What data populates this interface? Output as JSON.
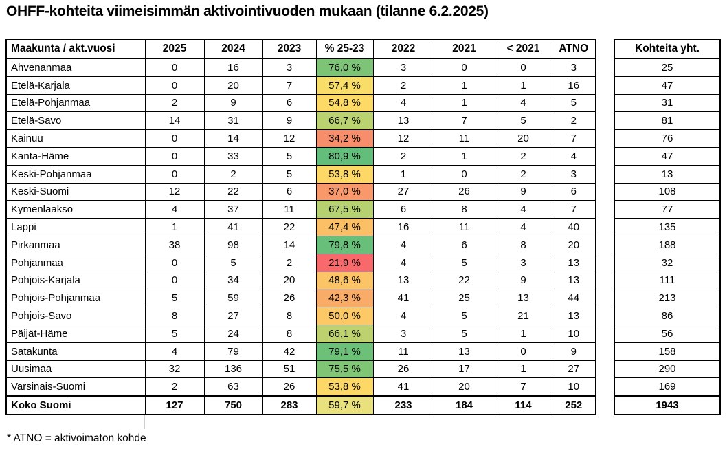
{
  "page": {
    "title": "OHFF-kohteita viimeisimmän aktivointivuoden mukaan (tilanne 6.2.2025)",
    "footnote": "* ATNO = aktivoimaton kohde"
  },
  "chart_data": {
    "type": "table",
    "title": "OHFF-kohteita viimeisimmän aktivointivuoden mukaan (tilanne 6.2.2025)",
    "columns": [
      "Maakunta / akt.vuosi",
      "2025",
      "2024",
      "2023",
      "% 25-23",
      "2022",
      "2021",
      "< 2021",
      "ATNO"
    ],
    "totals_column_header": "Kohteita yht.",
    "rows": [
      {
        "maakunta": "Ahvenanmaa",
        "v2025": "0",
        "v2024": "16",
        "v2023": "3",
        "pct": "76,0 %",
        "pct_color": "#7DC477",
        "v2022": "3",
        "v2021": "0",
        "pre2021": "0",
        "atno": "3",
        "kohteita_yht": "25"
      },
      {
        "maakunta": "Etelä-Karjala",
        "v2025": "0",
        "v2024": "20",
        "v2023": "7",
        "pct": "57,4 %",
        "pct_color": "#F8DE68",
        "v2022": "2",
        "v2021": "1",
        "pre2021": "1",
        "atno": "16",
        "kohteita_yht": "47"
      },
      {
        "maakunta": "Etelä-Pohjanmaa",
        "v2025": "2",
        "v2024": "9",
        "v2023": "6",
        "pct": "54,8 %",
        "pct_color": "#FDDA66",
        "v2022": "4",
        "v2021": "1",
        "pre2021": "4",
        "atno": "5",
        "kohteita_yht": "31"
      },
      {
        "maakunta": "Etelä-Savo",
        "v2025": "14",
        "v2024": "31",
        "v2023": "9",
        "pct": "66,7 %",
        "pct_color": "#BAD26F",
        "v2022": "13",
        "v2021": "7",
        "pre2021": "5",
        "atno": "2",
        "kohteita_yht": "81"
      },
      {
        "maakunta": "Kainuu",
        "v2025": "0",
        "v2024": "14",
        "v2023": "12",
        "pct": "34,2 %",
        "pct_color": "#F78E6B",
        "v2022": "12",
        "v2021": "11",
        "pre2021": "20",
        "atno": "7",
        "kohteita_yht": "76"
      },
      {
        "maakunta": "Kanta-Häme",
        "v2025": "0",
        "v2024": "33",
        "v2023": "5",
        "pct": "80,9 %",
        "pct_color": "#63BE7B",
        "v2022": "2",
        "v2021": "1",
        "pre2021": "2",
        "atno": "4",
        "kohteita_yht": "47"
      },
      {
        "maakunta": "Keski-Pohjanmaa",
        "v2025": "0",
        "v2024": "2",
        "v2023": "5",
        "pct": "53,8 %",
        "pct_color": "#FDD866",
        "v2022": "1",
        "v2021": "0",
        "pre2021": "2",
        "atno": "3",
        "kohteita_yht": "13"
      },
      {
        "maakunta": "Keski-Suomi",
        "v2025": "12",
        "v2024": "22",
        "v2023": "6",
        "pct": "37,0 %",
        "pct_color": "#F8986B",
        "v2022": "27",
        "v2021": "26",
        "pre2021": "9",
        "atno": "6",
        "kohteita_yht": "108"
      },
      {
        "maakunta": "Kymenlaakso",
        "v2025": "4",
        "v2024": "37",
        "v2023": "11",
        "pct": "67,5 %",
        "pct_color": "#B5D170",
        "v2022": "6",
        "v2021": "8",
        "pre2021": "4",
        "atno": "7",
        "kohteita_yht": "77"
      },
      {
        "maakunta": "Lappi",
        "v2025": "1",
        "v2024": "41",
        "v2023": "22",
        "pct": "47,4 %",
        "pct_color": "#FBC066",
        "v2022": "16",
        "v2021": "11",
        "pre2021": "4",
        "atno": "40",
        "kohteita_yht": "135"
      },
      {
        "maakunta": "Pirkanmaa",
        "v2025": "38",
        "v2024": "98",
        "v2023": "14",
        "pct": "79,8 %",
        "pct_color": "#68BF79",
        "v2022": "4",
        "v2021": "6",
        "pre2021": "8",
        "atno": "20",
        "kohteita_yht": "188"
      },
      {
        "maakunta": "Pohjanmaa",
        "v2025": "0",
        "v2024": "5",
        "v2023": "2",
        "pct": "21,9 %",
        "pct_color": "#F8696B",
        "v2022": "4",
        "v2021": "5",
        "pre2021": "3",
        "atno": "13",
        "kohteita_yht": "32"
      },
      {
        "maakunta": "Pohjois-Karjala",
        "v2025": "0",
        "v2024": "34",
        "v2023": "20",
        "pct": "48,6 %",
        "pct_color": "#FBC466",
        "v2022": "13",
        "v2021": "22",
        "pre2021": "9",
        "atno": "13",
        "kohteita_yht": "111"
      },
      {
        "maakunta": "Pohjois-Pohjanmaa",
        "v2025": "5",
        "v2024": "59",
        "v2023": "26",
        "pct": "42,3 %",
        "pct_color": "#F9AC68",
        "v2022": "41",
        "v2021": "25",
        "pre2021": "13",
        "atno": "44",
        "kohteita_yht": "213"
      },
      {
        "maakunta": "Pohjois-Savo",
        "v2025": "8",
        "v2024": "27",
        "v2023": "8",
        "pct": "50,0 %",
        "pct_color": "#FCC966",
        "v2022": "4",
        "v2021": "5",
        "pre2021": "21",
        "atno": "13",
        "kohteita_yht": "86"
      },
      {
        "maakunta": "Päijät-Häme",
        "v2025": "5",
        "v2024": "24",
        "v2023": "8",
        "pct": "66,1 %",
        "pct_color": "#BDD26E",
        "v2022": "3",
        "v2021": "5",
        "pre2021": "1",
        "atno": "10",
        "kohteita_yht": "56"
      },
      {
        "maakunta": "Satakunta",
        "v2025": "4",
        "v2024": "79",
        "v2023": "42",
        "pct": "79,1 %",
        "pct_color": "#6CC078",
        "v2022": "11",
        "v2021": "13",
        "pre2021": "0",
        "atno": "9",
        "kohteita_yht": "158"
      },
      {
        "maakunta": "Uusimaa",
        "v2025": "32",
        "v2024": "136",
        "v2023": "51",
        "pct": "75,5 %",
        "pct_color": "#80C476",
        "v2022": "26",
        "v2021": "17",
        "pre2021": "1",
        "atno": "27",
        "kohteita_yht": "290"
      },
      {
        "maakunta": "Varsinais-Suomi",
        "v2025": "2",
        "v2024": "63",
        "v2023": "26",
        "pct": "53,8 %",
        "pct_color": "#FDD866",
        "v2022": "41",
        "v2021": "20",
        "pre2021": "7",
        "atno": "10",
        "kohteita_yht": "169"
      }
    ],
    "total_row": {
      "maakunta": "Koko Suomi",
      "v2025": "127",
      "v2024": "750",
      "v2023": "283",
      "pct": "59,7 %",
      "pct_color": "#E9E07E",
      "v2022": "233",
      "v2021": "184",
      "pre2021": "114",
      "atno": "252",
      "kohteita_yht": "1943"
    }
  }
}
